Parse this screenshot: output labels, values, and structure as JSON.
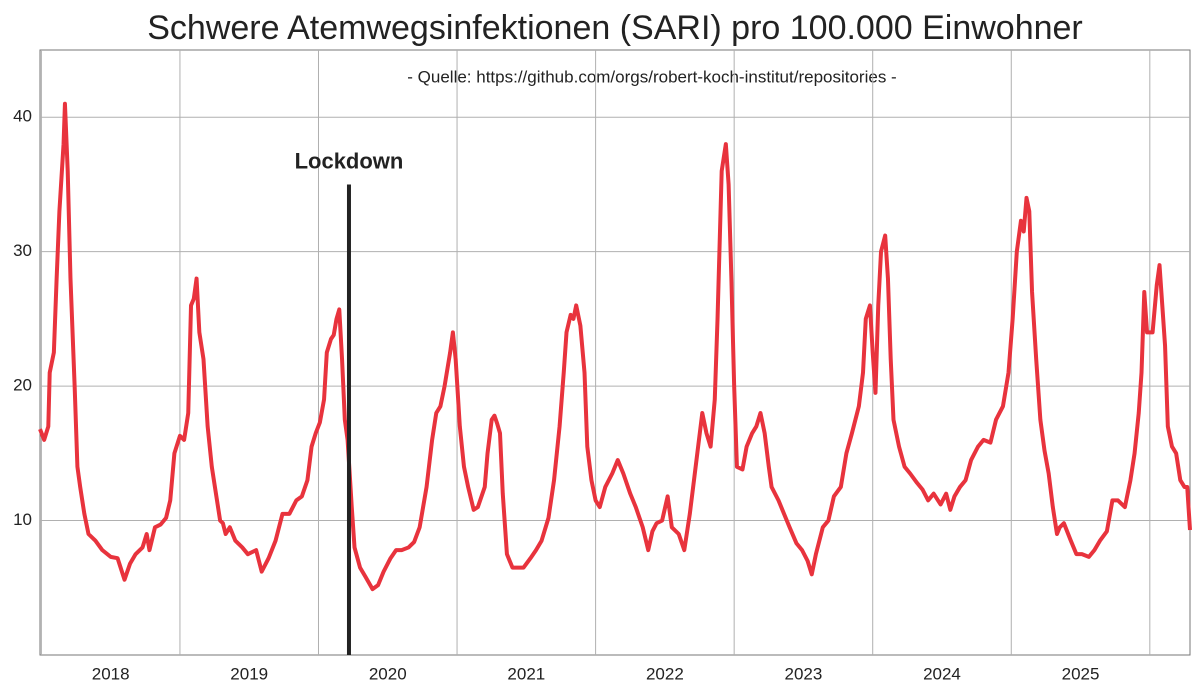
{
  "chart_data": {
    "type": "line",
    "title": "Schwere Atemwegsinfektionen (SARI) pro 100.000 Einwohner",
    "subtitle": "- Quelle: https://github.com/orgs/robert-koch-institut/repositories -",
    "color": "#e8333d",
    "grid": true,
    "xlim": [
      2017.99,
      2026.29
    ],
    "xticks": [
      2018,
      2019,
      2020,
      2021,
      2022,
      2023,
      2024,
      2025,
      {
        "value": 2026,
        "label": null
      }
    ],
    "ylim": [
      0,
      45
    ],
    "yticks": [
      10,
      20,
      30,
      40
    ],
    "annotations": [
      {
        "text": "Lockdown",
        "x": 2020.22,
        "y": 35
      }
    ],
    "x": [
      2017.99,
      2018.02,
      2018.05,
      2018.06,
      2018.09,
      2018.11,
      2018.13,
      2018.16,
      2018.17,
      2018.19,
      2018.21,
      2018.24,
      2018.26,
      2018.28,
      2018.31,
      2018.34,
      2018.39,
      2018.44,
      2018.5,
      2018.55,
      2018.6,
      2018.64,
      2018.68,
      2018.73,
      2018.76,
      2018.78,
      2018.82,
      2018.86,
      2018.9,
      2018.93,
      2018.96,
      2019.0,
      2019.03,
      2019.06,
      2019.08,
      2019.1,
      2019.12,
      2019.14,
      2019.17,
      2019.2,
      2019.23,
      2019.26,
      2019.29,
      2019.31,
      2019.33,
      2019.36,
      2019.4,
      2019.45,
      2019.49,
      2019.55,
      2019.59,
      2019.64,
      2019.69,
      2019.74,
      2019.79,
      2019.84,
      2019.88,
      2019.92,
      2019.95,
      2019.98,
      2020.01,
      2020.04,
      2020.06,
      2020.09,
      2020.11,
      2020.13,
      2020.15,
      2020.17,
      2020.19,
      2020.21,
      2020.24,
      2020.26,
      2020.3,
      2020.34,
      2020.39,
      2020.43,
      2020.47,
      2020.52,
      2020.56,
      2020.6,
      2020.65,
      2020.69,
      2020.73,
      2020.78,
      2020.82,
      2020.85,
      2020.88,
      2020.91,
      2020.95,
      2020.97,
      2020.99,
      2021.02,
      2021.05,
      2021.08,
      2021.12,
      2021.15,
      2021.2,
      2021.22,
      2021.25,
      2021.27,
      2021.29,
      2021.31,
      2021.33,
      2021.36,
      2021.4,
      2021.44,
      2021.48,
      2021.53,
      2021.57,
      2021.61,
      2021.66,
      2021.7,
      2021.74,
      2021.77,
      2021.79,
      2021.82,
      2021.84,
      2021.86,
      2021.89,
      2021.92,
      2021.94,
      2021.97,
      2022.0,
      2022.03,
      2022.07,
      2022.12,
      2022.16,
      2022.2,
      2022.25,
      2022.29,
      2022.34,
      2022.38,
      2022.41,
      2022.44,
      2022.48,
      2022.52,
      2022.55,
      2022.6,
      2022.64,
      2022.68,
      2022.71,
      2022.74,
      2022.77,
      2022.8,
      2022.83,
      2022.86,
      2022.88,
      2022.91,
      2022.94,
      2022.96,
      2022.98,
      2023.0,
      2023.02,
      2023.06,
      2023.09,
      2023.13,
      2023.16,
      2023.19,
      2023.22,
      2023.25,
      2023.27,
      2023.32,
      2023.36,
      2023.4,
      2023.45,
      2023.49,
      2023.53,
      2023.56,
      2023.59,
      2023.64,
      2023.68,
      2023.72,
      2023.77,
      2023.81,
      2023.85,
      2023.9,
      2023.93,
      2023.95,
      2023.98,
      2024.0,
      2024.02,
      2024.04,
      2024.06,
      2024.09,
      2024.11,
      2024.13,
      2024.15,
      2024.19,
      2024.23,
      2024.27,
      2024.32,
      2024.36,
      2024.4,
      2024.44,
      2024.49,
      2024.53,
      2024.56,
      2024.59,
      2024.63,
      2024.67,
      2024.71,
      2024.76,
      2024.8,
      2024.85,
      2024.89,
      2024.94,
      2024.98,
      2025.01,
      2025.04,
      2025.07,
      2025.09,
      2025.11,
      2025.13,
      2025.15,
      2025.18,
      2025.21,
      2025.24,
      2025.27,
      2025.3,
      2025.33,
      2025.35,
      2025.38,
      2025.43,
      2025.47,
      2025.51,
      2025.56,
      2025.6,
      2025.64,
      2025.69,
      2025.73,
      2025.77,
      2025.82,
      2025.86,
      2025.89,
      2025.92,
      2025.94,
      2025.96,
      2025.98,
      2026.02,
      2026.05,
      2026.07,
      2026.09,
      2026.11,
      2026.13,
      2026.16,
      2026.19,
      2026.22,
      2026.25,
      2026.27,
      2026.29
    ],
    "values": [
      16.8,
      16,
      17,
      21,
      22.5,
      28,
      33,
      38,
      41,
      36,
      28,
      20,
      14,
      12.5,
      10.5,
      9,
      8.5,
      7.8,
      7.3,
      7.2,
      5.6,
      6.8,
      7.5,
      8,
      9,
      7.8,
      9.5,
      9.7,
      10.2,
      11.5,
      15,
      16.3,
      16,
      18,
      26,
      26.5,
      28,
      24,
      22,
      17,
      14,
      12,
      10,
      9.8,
      9,
      9.5,
      8.5,
      8,
      7.5,
      7.8,
      6.2,
      7.2,
      8.5,
      10.5,
      10.5,
      11.5,
      11.8,
      13,
      15.5,
      16.5,
      17.3,
      19,
      22.5,
      23.5,
      23.8,
      25,
      25.7,
      22,
      17.5,
      16,
      11,
      8,
      6.5,
      5.8,
      4.9,
      5.2,
      6.2,
      7.2,
      7.8,
      7.8,
      8,
      8.4,
      9.5,
      12.5,
      16,
      18,
      18.5,
      20,
      22.5,
      24,
      22,
      17,
      14,
      12.5,
      10.8,
      11,
      12.5,
      15,
      17.5,
      17.8,
      17.2,
      16.5,
      12,
      7.5,
      6.5,
      6.5,
      6.5,
      7.2,
      7.8,
      8.5,
      10.2,
      13,
      17,
      21,
      24,
      25.3,
      25,
      26,
      24.5,
      21,
      15.5,
      13,
      11.5,
      11,
      12.5,
      13.5,
      14.5,
      13.5,
      12,
      11,
      9.5,
      7.8,
      9.2,
      9.8,
      10,
      11.8,
      9.5,
      9,
      7.8,
      10.5,
      13,
      15.5,
      18,
      16.5,
      15.5,
      19,
      25,
      36,
      38,
      35,
      28,
      20,
      14,
      13.8,
      15.5,
      16.5,
      17,
      18,
      16.5,
      14,
      12.5,
      11.5,
      10.5,
      9.5,
      8.3,
      7.8,
      7,
      6,
      7.5,
      9.5,
      10,
      11.8,
      12.5,
      15,
      16.5,
      18.5,
      21,
      25,
      26,
      22.5,
      19.5,
      26,
      30,
      31.2,
      28,
      22,
      17.5,
      15.5,
      14,
      13.5,
      12.8,
      12.3,
      11.5,
      12,
      11.2,
      12,
      10.8,
      11.8,
      12.5,
      13,
      14.5,
      15.5,
      16,
      15.8,
      17.5,
      18.5,
      21,
      25,
      30,
      32.3,
      31.5,
      34,
      33,
      27,
      22,
      17.5,
      15.2,
      13.5,
      11,
      9,
      9.5,
      9.8,
      8.5,
      7.5,
      7.5,
      7.3,
      7.8,
      8.5,
      9.2,
      11.5,
      11.5,
      11,
      13,
      15,
      18,
      21,
      27,
      24,
      24,
      27.5,
      29,
      26,
      23,
      17,
      15.5,
      15,
      13,
      12.5,
      12.5,
      9.3
    ]
  }
}
